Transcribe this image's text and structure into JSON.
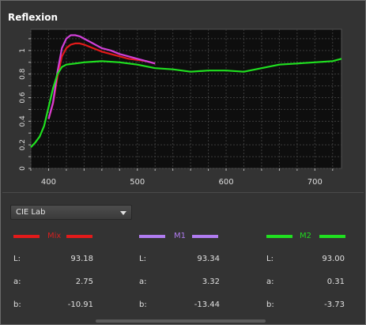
{
  "panel": {
    "title": "Reflexion"
  },
  "chart_data": {
    "type": "line",
    "xlim": [
      380,
      730
    ],
    "ylim": [
      0,
      1.18
    ],
    "x_ticks": [
      400,
      500,
      600,
      700
    ],
    "y_ticks": [
      0,
      0.2,
      0.4,
      0.6,
      0.8,
      1
    ],
    "y_tick_labels": [
      "0",
      "0.2",
      "0.4",
      "0.6",
      "0.8",
      "1"
    ],
    "grid": true,
    "series": [
      {
        "name": "Mix",
        "color": "#e31a1a",
        "x": [
          400,
          405,
          410,
          415,
          420,
          425,
          430,
          435,
          440,
          450,
          460,
          470,
          480,
          490,
          500,
          510,
          520
        ],
        "y": [
          0.42,
          0.55,
          0.78,
          0.95,
          1.02,
          1.05,
          1.06,
          1.06,
          1.05,
          1.02,
          0.99,
          0.97,
          0.95,
          0.93,
          0.92,
          0.91,
          0.89
        ]
      },
      {
        "name": "M1",
        "color": "#d040d8",
        "x": [
          400,
          405,
          410,
          415,
          420,
          425,
          430,
          435,
          440,
          450,
          460,
          470,
          480,
          490,
          500,
          510,
          520
        ],
        "y": [
          0.42,
          0.56,
          0.82,
          1.02,
          1.1,
          1.13,
          1.13,
          1.12,
          1.1,
          1.06,
          1.02,
          1.0,
          0.97,
          0.95,
          0.93,
          0.91,
          0.89
        ]
      },
      {
        "name": "M2",
        "color": "#20e020",
        "x": [
          380,
          385,
          390,
          395,
          400,
          405,
          410,
          415,
          420,
          430,
          440,
          460,
          480,
          500,
          520,
          540,
          560,
          580,
          600,
          620,
          640,
          660,
          680,
          700,
          720,
          730
        ],
        "y": [
          0.18,
          0.22,
          0.27,
          0.36,
          0.52,
          0.68,
          0.8,
          0.86,
          0.88,
          0.89,
          0.9,
          0.91,
          0.9,
          0.88,
          0.85,
          0.84,
          0.82,
          0.83,
          0.83,
          0.82,
          0.85,
          0.88,
          0.89,
          0.9,
          0.91,
          0.93
        ]
      }
    ]
  },
  "color_space": {
    "selected": "CIE Lab"
  },
  "columns": [
    {
      "name": "Mix",
      "color": "#e31a1a",
      "name_color": "#d42020",
      "L": "93.18",
      "a": "2.75",
      "b": "-10.91"
    },
    {
      "name": "M1",
      "color": "#b07cf0",
      "name_color": "#b07cf0",
      "L": "93.34",
      "a": "3.32",
      "b": "-13.44"
    },
    {
      "name": "M2",
      "color": "#20e020",
      "name_color": "#20d820",
      "L": "93.00",
      "a": "0.31",
      "b": "-3.73"
    }
  ],
  "labels": {
    "L": "L:",
    "a": "a:",
    "b": "b:"
  }
}
